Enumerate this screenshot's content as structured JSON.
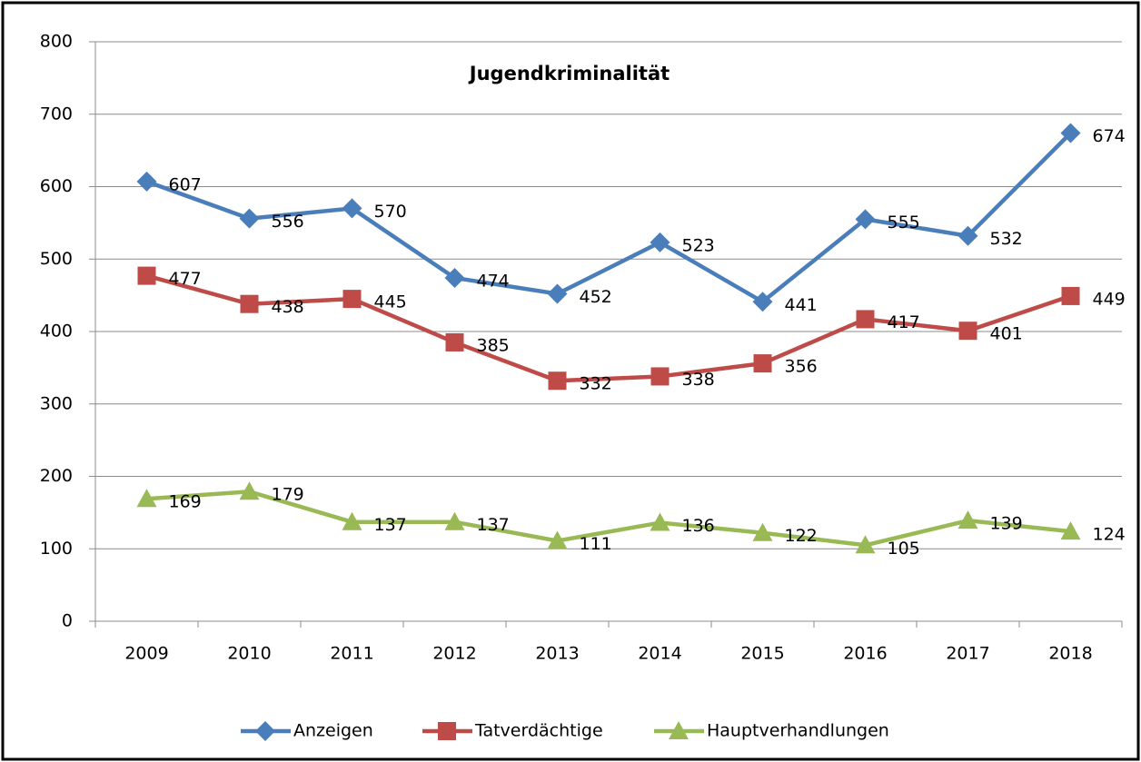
{
  "chart_data": {
    "type": "line",
    "title": "Jugendkriminalität",
    "categories": [
      "2009",
      "2010",
      "2011",
      "2012",
      "2013",
      "2014",
      "2015",
      "2016",
      "2017",
      "2018"
    ],
    "series": [
      {
        "name": "Anzeigen",
        "color": "#4a7ebb",
        "marker": "diamond",
        "values": [
          607,
          556,
          570,
          474,
          452,
          523,
          441,
          555,
          532,
          674
        ]
      },
      {
        "name": "Tatverdächtige",
        "color": "#be4b48",
        "marker": "square",
        "values": [
          477,
          438,
          445,
          385,
          332,
          338,
          356,
          417,
          401,
          449
        ]
      },
      {
        "name": "Hauptverhandlungen",
        "color": "#98b954",
        "marker": "triangle",
        "values": [
          169,
          179,
          137,
          137,
          111,
          136,
          122,
          105,
          139,
          124
        ]
      }
    ],
    "ylim": [
      0,
      800
    ],
    "yticks": [
      0,
      100,
      200,
      300,
      400,
      500,
      600,
      700,
      800
    ],
    "grid": true,
    "legend": "bottom"
  }
}
